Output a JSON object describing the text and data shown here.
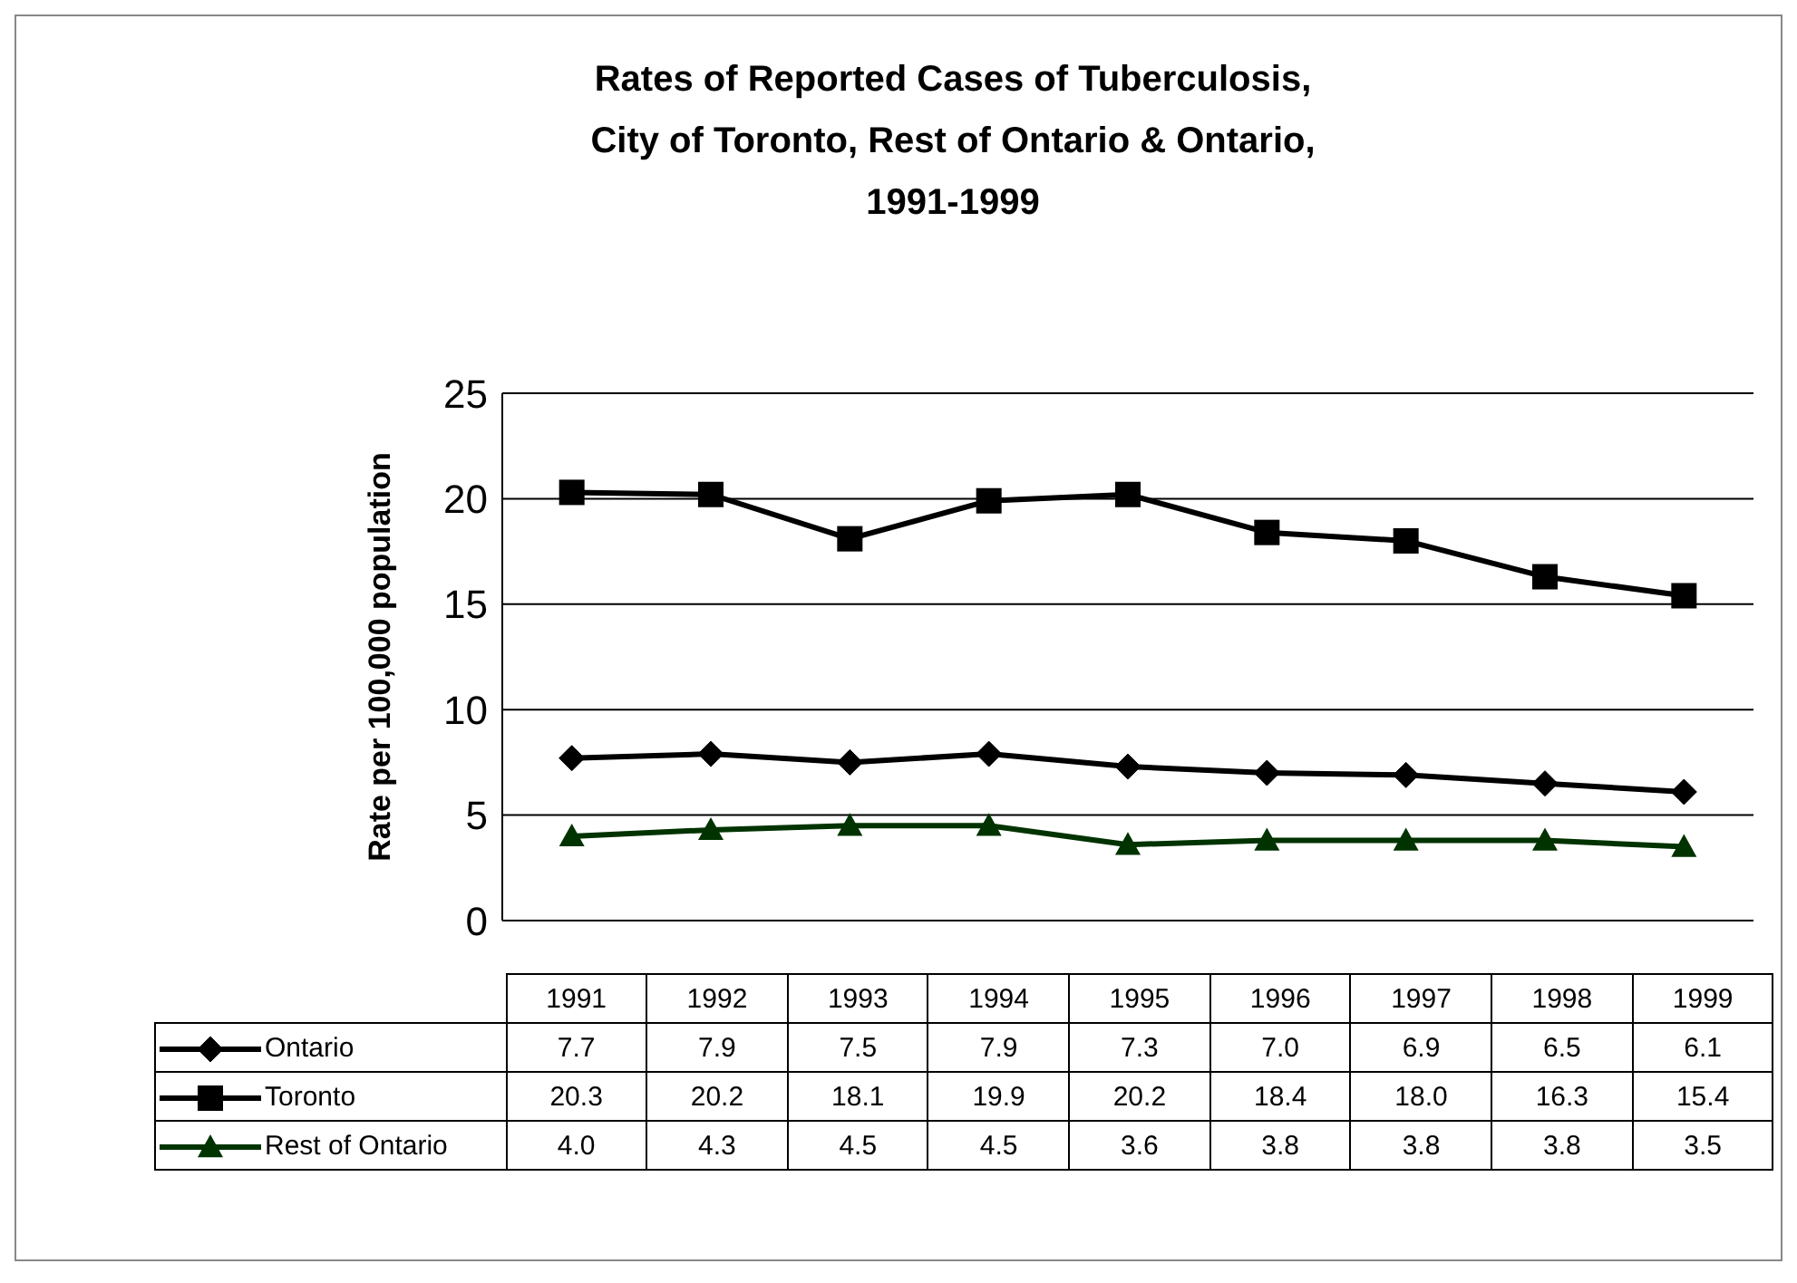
{
  "chart_data": {
    "type": "line",
    "title": "Rates of Reported Cases of Tuberculosis,\nCity of Toronto, Rest of Ontario & Ontario,\n1991-1999",
    "ylabel": "Rate per 100,000 population",
    "categories": [
      "1991",
      "1992",
      "1993",
      "1994",
      "1995",
      "1996",
      "1997",
      "1998",
      "1999"
    ],
    "series": [
      {
        "name": "Ontario",
        "color": "#000000",
        "marker": "diamond",
        "values": [
          7.7,
          7.9,
          7.5,
          7.9,
          7.3,
          7.0,
          6.9,
          6.5,
          6.1
        ],
        "value_labels": [
          "7.7",
          "7.9",
          "7.5",
          "7.9",
          "7.3",
          "7.0",
          "6.9",
          "6.5",
          "6.1"
        ]
      },
      {
        "name": "Toronto",
        "color": "#000000",
        "marker": "square",
        "values": [
          20.3,
          20.2,
          18.1,
          19.9,
          20.2,
          18.4,
          18.0,
          16.3,
          15.4
        ],
        "value_labels": [
          "20.3",
          "20.2",
          "18.1",
          "19.9",
          "20.2",
          "18.4",
          "18.0",
          "16.3",
          "15.4"
        ]
      },
      {
        "name": "Rest of Ontario",
        "color": "#003300",
        "marker": "triangle",
        "values": [
          4.0,
          4.3,
          4.5,
          4.5,
          3.6,
          3.8,
          3.8,
          3.8,
          3.5
        ],
        "value_labels": [
          "4.0",
          "4.3",
          "4.5",
          "4.5",
          "3.6",
          "3.8",
          "3.8",
          "3.8",
          "3.5"
        ]
      }
    ],
    "ylim": [
      0,
      25
    ],
    "yticks": [
      0,
      5,
      10,
      15,
      20,
      25
    ],
    "grid": "y",
    "legend": "bottom"
  }
}
